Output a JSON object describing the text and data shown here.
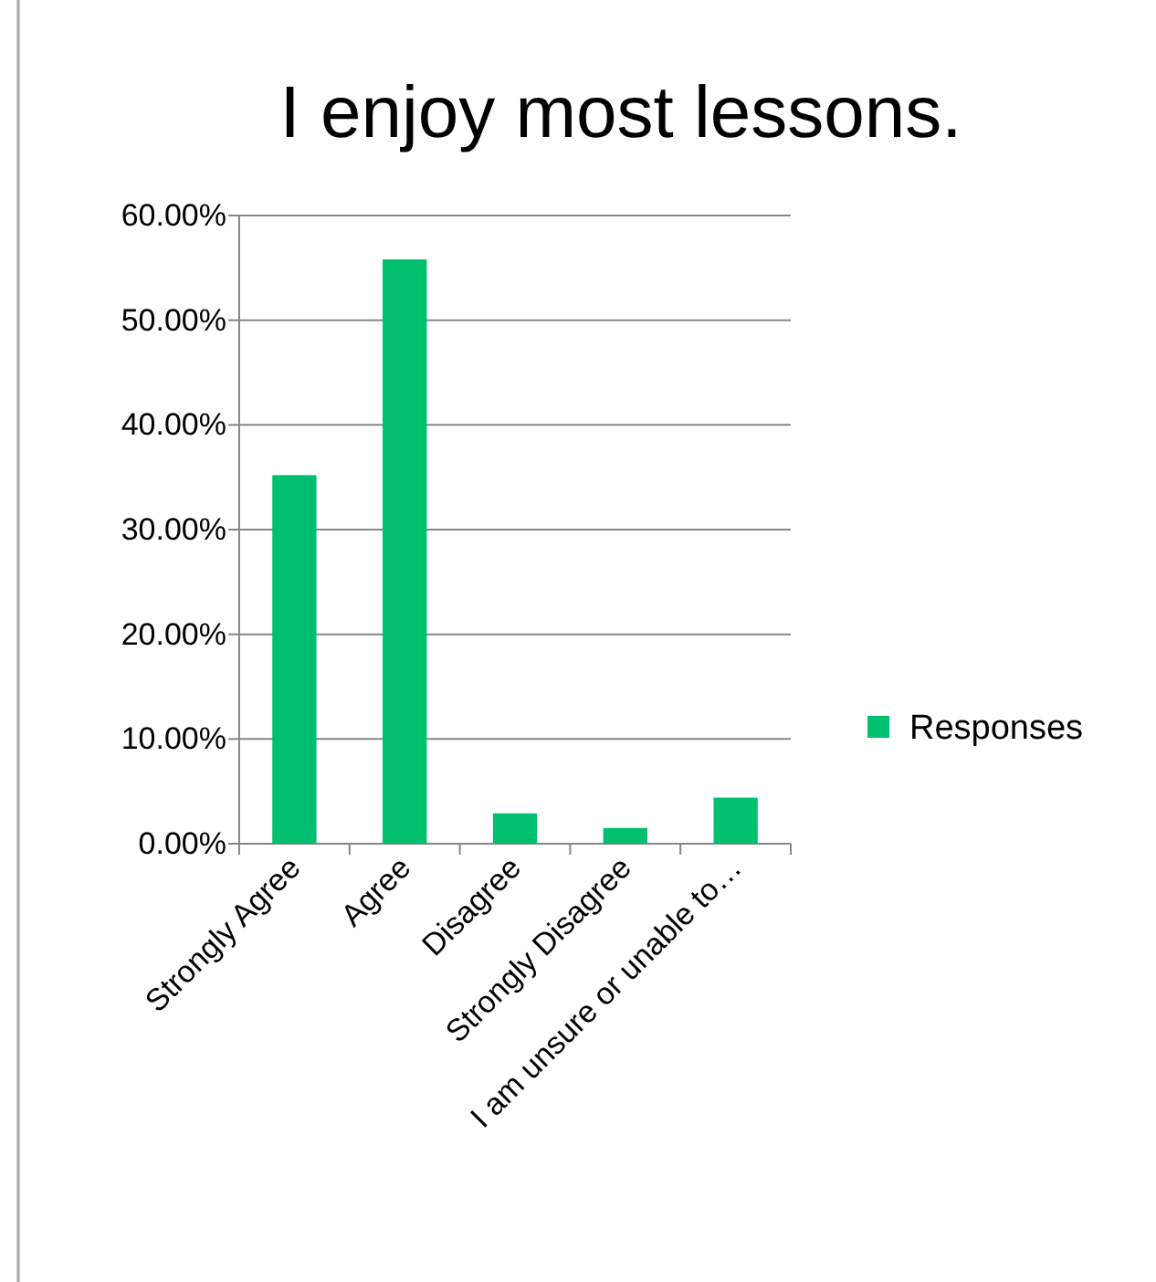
{
  "chart_data": {
    "type": "bar",
    "title": "I enjoy most lessons.",
    "categories": [
      "Strongly Agree",
      "Agree",
      "Disagree",
      "Strongly Disagree",
      "I am unsure or unable to…"
    ],
    "series": [
      {
        "name": "Responses",
        "color": "#00bf6f",
        "values": [
          35.2,
          55.8,
          2.9,
          1.5,
          4.4
        ]
      }
    ],
    "ylim": [
      0,
      60
    ],
    "yticks": [
      {
        "value": 0,
        "label": "0.00%"
      },
      {
        "value": 10,
        "label": "10.00%"
      },
      {
        "value": 20,
        "label": "20.00%"
      },
      {
        "value": 30,
        "label": "30.00%"
      },
      {
        "value": 40,
        "label": "40.00%"
      },
      {
        "value": 50,
        "label": "50.00%"
      },
      {
        "value": 60,
        "label": "60.00%"
      }
    ],
    "grid": "y",
    "legend": "right"
  }
}
